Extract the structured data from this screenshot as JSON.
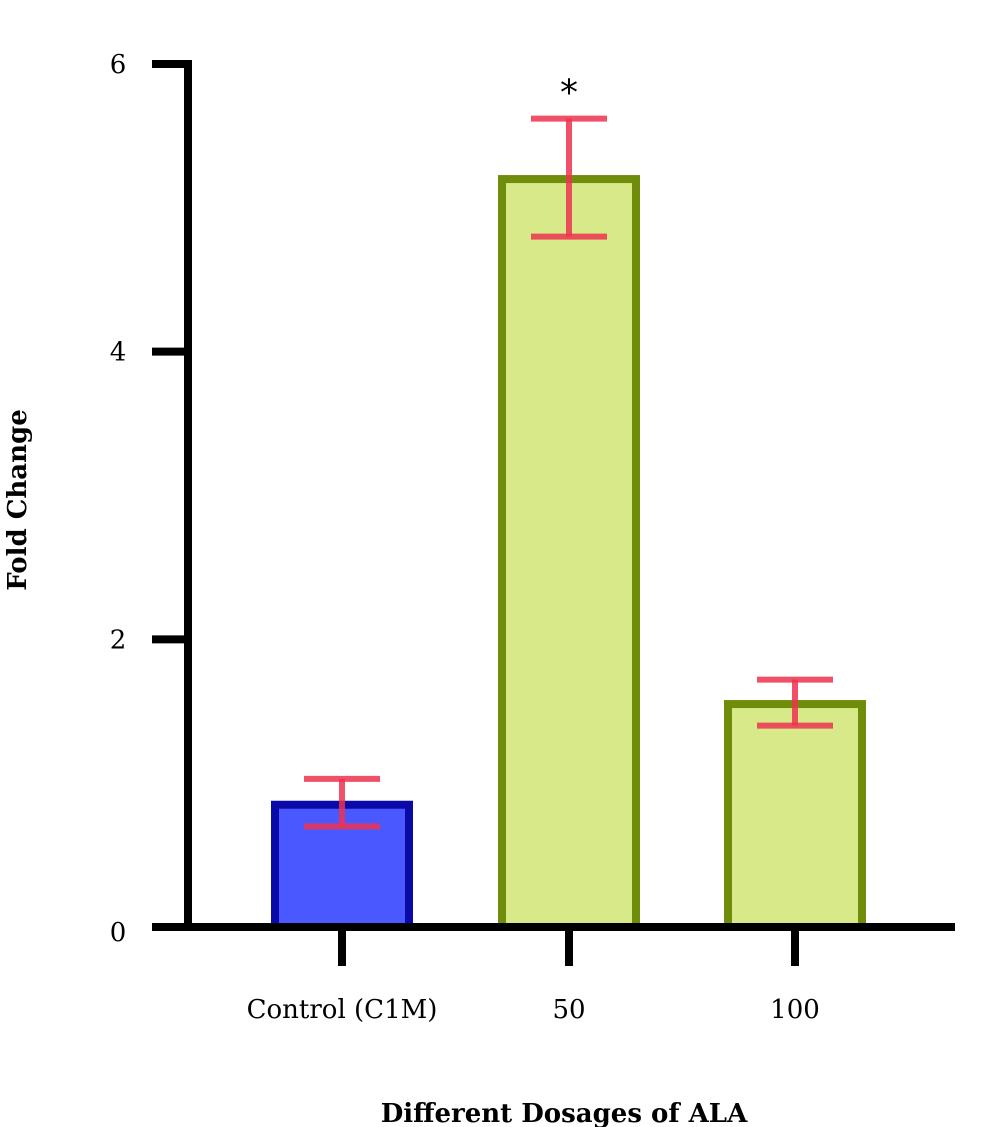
{
  "chart_data": {
    "type": "bar",
    "categories": [
      "Control (C1M)",
      "50",
      "100"
    ],
    "values": [
      0.85,
      5.2,
      1.55
    ],
    "errors": [
      0.18,
      0.42,
      0.17
    ],
    "error_low": [
      0.7,
      4.8,
      1.4
    ],
    "error_high": [
      1.03,
      5.62,
      1.72
    ],
    "xlabel": "Different Dosages of ALA",
    "ylabel": "Fold Change",
    "ylim": [
      0,
      6
    ],
    "yticks": [
      "0",
      "2",
      "4",
      "6"
    ],
    "ytick_values": [
      0,
      2,
      4,
      6
    ],
    "annotations": [
      {
        "category": "50",
        "text": "*"
      }
    ],
    "grid": false,
    "colors": {
      "bar_fill": [
        "#4a58ff",
        "#d8e98a",
        "#d8e98a"
      ],
      "bar_stroke": [
        "#0a0aa8",
        "#6f8c0a",
        "#6f8c0a"
      ],
      "error_bar": "#ee3350",
      "axis": "#000000"
    }
  }
}
